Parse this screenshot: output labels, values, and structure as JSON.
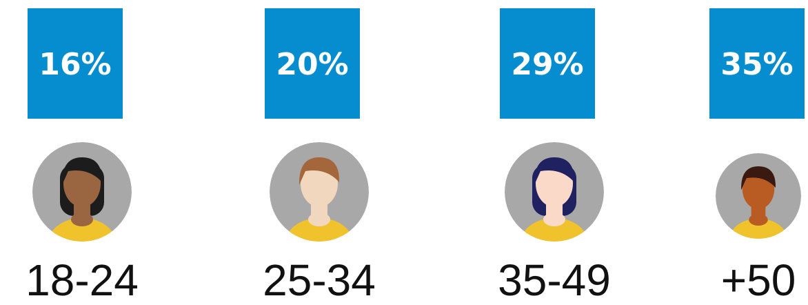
{
  "items": [
    {
      "share": "16%",
      "age": "18-24"
    },
    {
      "share": "20%",
      "age": "25-34"
    },
    {
      "share": "29%",
      "age": "35-49"
    },
    {
      "share": "35%",
      "age": "+50"
    }
  ]
}
